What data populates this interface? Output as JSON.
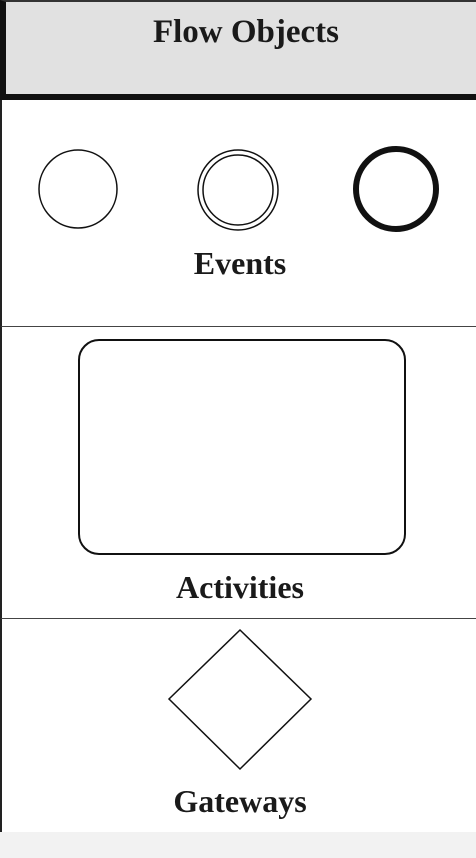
{
  "header": {
    "title": "Flow Objects"
  },
  "sections": [
    {
      "label": "Events",
      "shapes": [
        "circle-thin",
        "circle-double",
        "circle-thick"
      ]
    },
    {
      "label": "Activities",
      "shapes": [
        "rounded-rectangle"
      ]
    },
    {
      "label": "Gateways",
      "shapes": [
        "diamond"
      ]
    }
  ],
  "colors": {
    "header_background": "#e1e1e1",
    "stroke": "#111111",
    "background": "#ffffff"
  }
}
